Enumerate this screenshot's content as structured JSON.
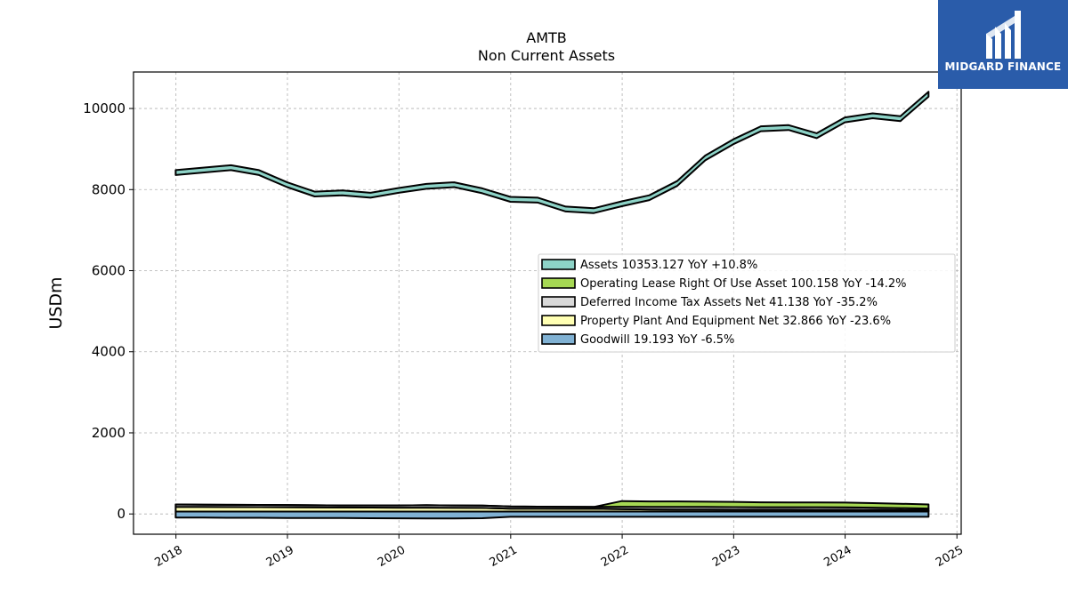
{
  "chart_data": {
    "type": "area",
    "title": "AMTB",
    "subtitle": "Non Current  Assets",
    "ylabel": "USDm",
    "xlabel": "",
    "ylim": [
      -500,
      10900
    ],
    "xlim": [
      "2017-08-15",
      "2025-01-15"
    ],
    "grid": true,
    "legend_position": "center-right",
    "yticks": [
      0,
      2000,
      4000,
      6000,
      8000,
      10000
    ],
    "ytick_labels": [
      "0",
      "2000",
      "4000",
      "6000",
      "8000",
      "10000"
    ],
    "xticks": [
      "2018-01-01",
      "2019-01-01",
      "2020-01-01",
      "2021-01-01",
      "2022-01-01",
      "2023-01-01",
      "2024-01-01",
      "2025-01-01"
    ],
    "xtick_labels": [
      "2018",
      "2019",
      "2020",
      "2021",
      "2022",
      "2023",
      "2024",
      "2025"
    ],
    "x": [
      "2017-12-31",
      "2018-03-31",
      "2018-06-30",
      "2018-09-30",
      "2018-12-31",
      "2019-03-31",
      "2019-06-30",
      "2019-09-30",
      "2019-12-31",
      "2020-03-31",
      "2020-06-30",
      "2020-09-30",
      "2020-12-31",
      "2021-03-31",
      "2021-06-30",
      "2021-09-30",
      "2021-12-31",
      "2022-03-31",
      "2022-06-30",
      "2022-09-30",
      "2022-12-31",
      "2023-03-31",
      "2023-06-30",
      "2023-09-30",
      "2023-12-31",
      "2024-03-31",
      "2024-06-30",
      "2024-09-30"
    ],
    "series": [
      {
        "name": "Assets",
        "legend": "Assets  10353.127 YoY +10.8%",
        "color": "#8dd3c7",
        "values": [
          8420,
          8480,
          8540,
          8420,
          8120,
          7890,
          7920,
          7860,
          7980,
          8080,
          8120,
          7970,
          7760,
          7740,
          7520,
          7480,
          7650,
          7800,
          8150,
          8780,
          9180,
          9500,
          9530,
          9330,
          9720,
          9820,
          9750,
          10353
        ]
      },
      {
        "name": "Operating Lease Right Of Use Asset",
        "legend": "Operating Lease Right Of Use Asset  100.158 YoY -14.2%",
        "color": "#a6d854",
        "values": [
          0,
          0,
          0,
          0,
          0,
          0,
          0,
          0,
          0,
          0,
          0,
          0,
          0,
          0,
          0,
          0,
          140,
          135,
          135,
          130,
          128,
          120,
          118,
          117,
          116,
          112,
          108,
          100
        ]
      },
      {
        "name": "Deferred Income Tax Assets Net",
        "legend": "Deferred Income Tax Assets Net  41.138 YoY -35.2%",
        "color": "#d9d9d9",
        "values": [
          60,
          58,
          55,
          55,
          55,
          52,
          50,
          52,
          55,
          60,
          58,
          55,
          52,
          50,
          50,
          48,
          60,
          62,
          63,
          64,
          63,
          62,
          62,
          63,
          63,
          55,
          48,
          41
        ]
      },
      {
        "name": "Property Plant And Equipment Net",
        "legend": "Property Plant And Equipment Net  32.866 YoY -23.6%",
        "color": "#ffffb3",
        "values": [
          115,
          112,
          110,
          108,
          106,
          103,
          100,
          98,
          96,
          95,
          93,
          90,
          72,
          70,
          68,
          66,
          58,
          52,
          50,
          48,
          46,
          45,
          44,
          43,
          42,
          40,
          36,
          33
        ]
      },
      {
        "name": "Goodwill",
        "legend": "Goodwill  19.193 YoY -6.5%",
        "color": "#80b1d3",
        "values": [
          -20,
          -20,
          -25,
          -25,
          -28,
          -30,
          -32,
          -35,
          -38,
          -40,
          -40,
          -35,
          22,
          22,
          22,
          21,
          21,
          21,
          21,
          21,
          21,
          21,
          21,
          20,
          20,
          20,
          20,
          19.2
        ]
      }
    ]
  },
  "logo": {
    "text": "MIDGARD FINANCE",
    "color": "#2a5caa",
    "icon": "midgard-logo-icon"
  }
}
